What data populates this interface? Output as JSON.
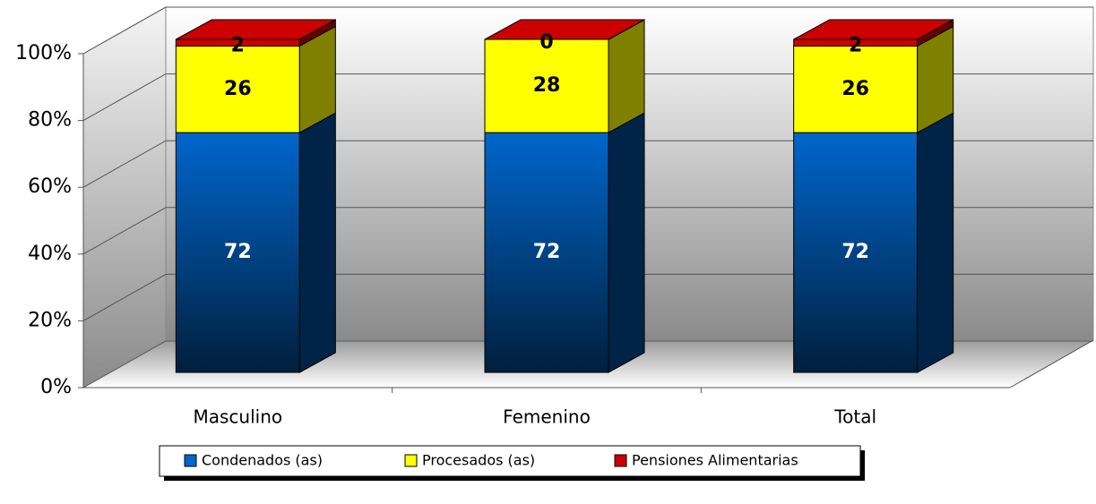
{
  "chart_data": {
    "type": "bar3d_stacked",
    "categories": [
      "Masculino",
      "Femenino",
      "Total"
    ],
    "series": [
      {
        "name": "Condenados (as)",
        "color": "#0066cc",
        "values": [
          72,
          72,
          72
        ]
      },
      {
        "name": "Procesados (as)",
        "color": "#ffff00",
        "values": [
          26,
          28,
          26
        ]
      },
      {
        "name": "Pensiones Alimentarias",
        "color": "#cc0000",
        "values": [
          2,
          0,
          2
        ]
      }
    ],
    "ylim": [
      0,
      100
    ],
    "yticks": [
      {
        "value": 0,
        "label": "0%"
      },
      {
        "value": 20,
        "label": "20%"
      },
      {
        "value": 40,
        "label": "40%"
      },
      {
        "value": 60,
        "label": "60%"
      },
      {
        "value": 80,
        "label": "80%"
      },
      {
        "value": 100,
        "label": "100%"
      }
    ],
    "grid": true,
    "legend": "bottom"
  }
}
